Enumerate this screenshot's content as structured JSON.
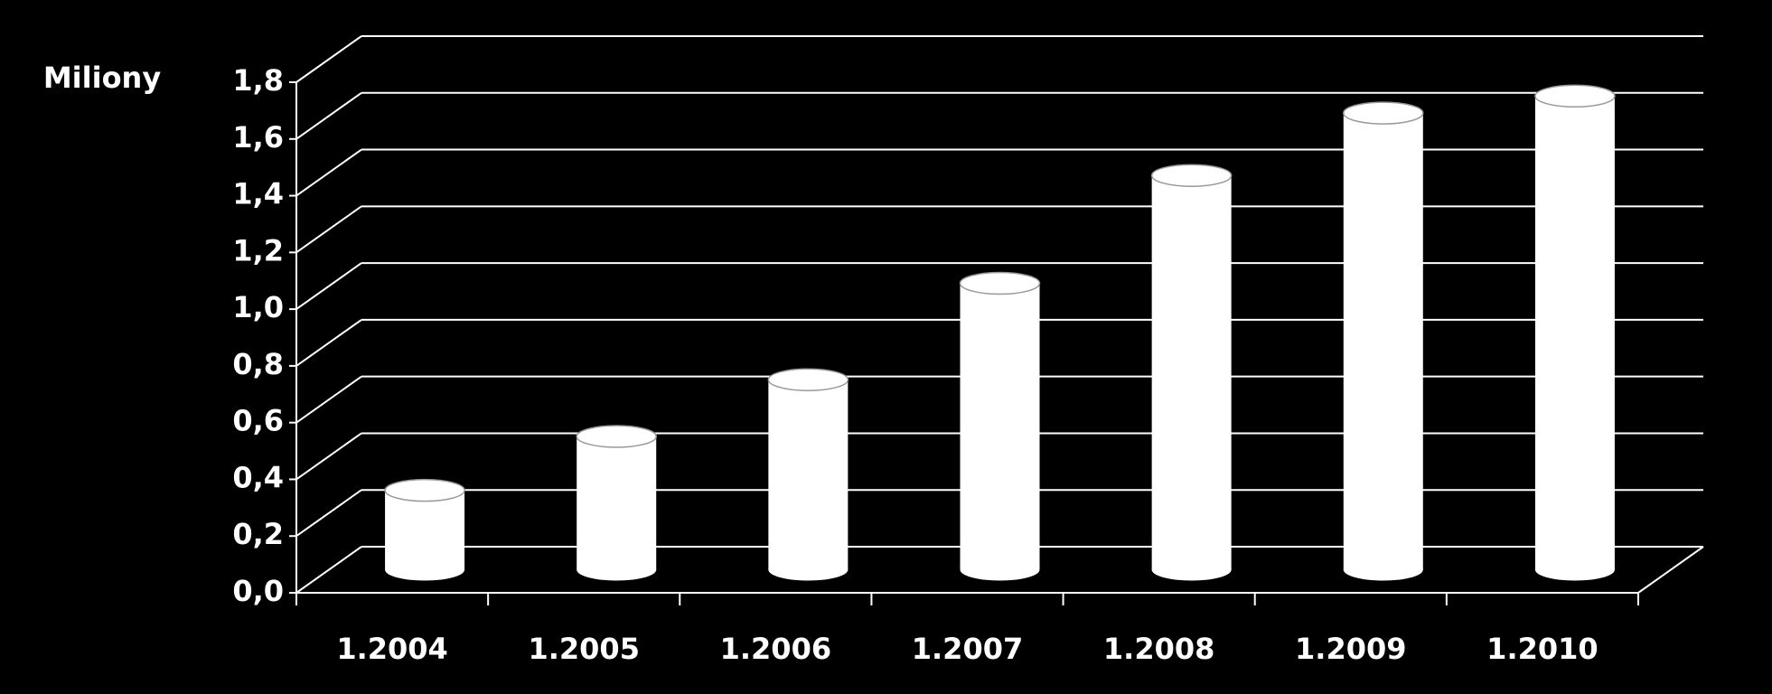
{
  "chart_data": {
    "type": "bar3d",
    "y_label": "Miliony",
    "categories": [
      "1.2004",
      "1.2005",
      "1.2006",
      "1.2007",
      "1.2008",
      "1.2009",
      "1.2010"
    ],
    "values": [
      0.28,
      0.47,
      0.67,
      1.01,
      1.39,
      1.61,
      1.67
    ],
    "color": "#ffffff",
    "ylim": [
      0,
      1.8
    ],
    "yticks": [
      {
        "value": 0,
        "label": "0,0"
      },
      {
        "value": 0.2,
        "label": "0,2"
      },
      {
        "value": 0.4,
        "label": "0,4"
      },
      {
        "value": 0.6,
        "label": "0,6"
      },
      {
        "value": 0.8,
        "label": "0,8"
      },
      {
        "value": 1.0,
        "label": "1,0"
      },
      {
        "value": 1.2,
        "label": "1,2"
      },
      {
        "value": 1.4,
        "label": "1,4"
      },
      {
        "value": 1.6,
        "label": "1,6"
      },
      {
        "value": 1.8,
        "label": "1,8"
      }
    ],
    "grid": true
  }
}
